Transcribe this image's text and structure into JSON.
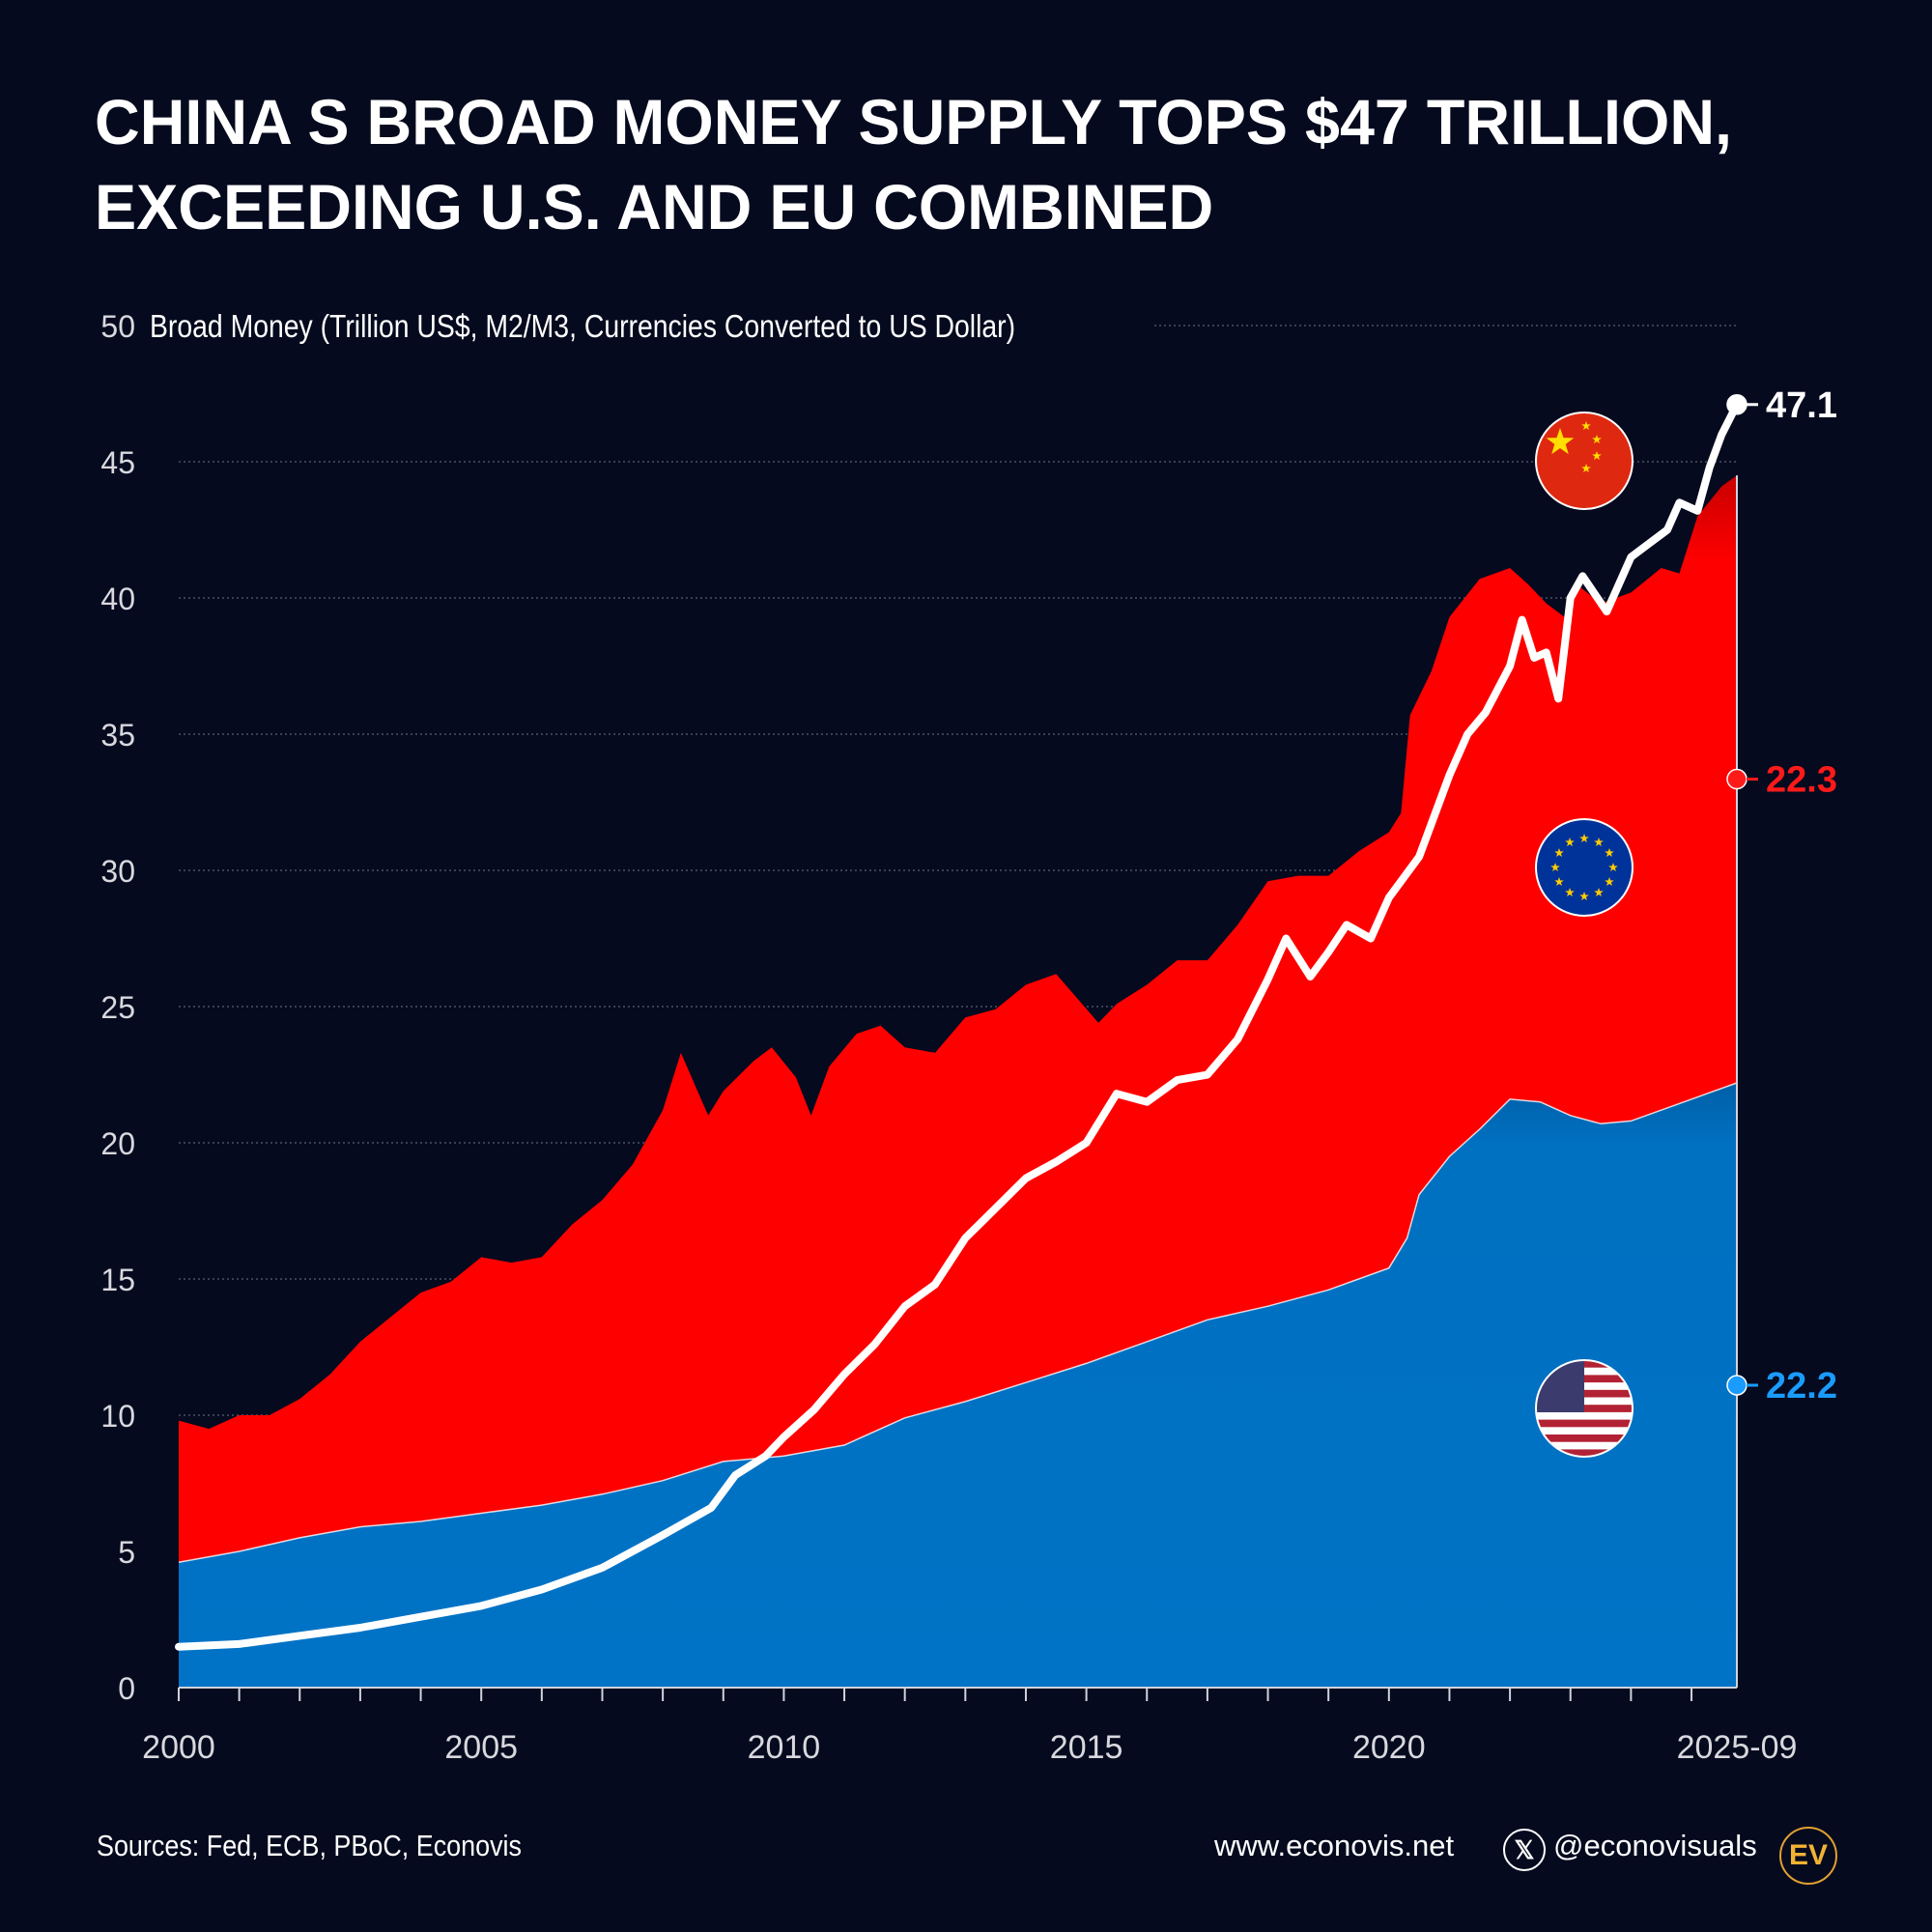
{
  "title_lines": [
    "CHINA S BROAD MONEY SUPPLY TOPS $47 TRILLION,",
    "EXCEEDING U.S. AND EU COMBINED"
  ],
  "footer": {
    "sources": "Sources: Fed, ECB, PBoC, Econovis",
    "website": "www.econovis.net",
    "social_handle": "@econovisuals",
    "social_icon": "x-icon",
    "logo_text": "EV"
  },
  "chart_data": {
    "type": "area",
    "stacked": true,
    "title": "",
    "ylabel": "Broad Money (Trillion US$, M2/M3, Currencies Converted to US Dollar)",
    "xlabel": "",
    "ylim": [
      0,
      50
    ],
    "xlim": [
      2000,
      2025.75
    ],
    "y_ticks": [
      0,
      5,
      10,
      15,
      20,
      25,
      30,
      35,
      40,
      45,
      50
    ],
    "x_tick_labels": [
      {
        "x": 2000,
        "label": "2000"
      },
      {
        "x": 2005,
        "label": "2005"
      },
      {
        "x": 2010,
        "label": "2010"
      },
      {
        "x": 2015,
        "label": "2015"
      },
      {
        "x": 2020,
        "label": "2020"
      },
      {
        "x": 2025.75,
        "label": "2025-09"
      }
    ],
    "grid": "horizontal dotted",
    "colors": {
      "us": "#0070c0",
      "eu": "#ff0000",
      "china": "#ffffff",
      "us_label": "#1a9cff",
      "eu_label": "#ff1a1a",
      "background": "#050a1e"
    },
    "end_labels": {
      "china": "47.1",
      "eu": "22.3",
      "us": "22.2"
    },
    "flags": {
      "china": "china-flag-icon",
      "eu": "eu-flag-icon",
      "us": "us-flag-icon"
    },
    "us": {
      "x": [
        2000,
        2001,
        2002,
        2003,
        2004,
        2005,
        2006,
        2007,
        2008,
        2009,
        2010,
        2011,
        2012,
        2013,
        2014,
        2015,
        2016,
        2017,
        2018,
        2019,
        2020,
        2020.3,
        2020.5,
        2021,
        2021.5,
        2022,
        2022.5,
        2023,
        2023.5,
        2024,
        2024.5,
        2025,
        2025.75
      ],
      "y": [
        4.6,
        5.0,
        5.5,
        5.9,
        6.1,
        6.4,
        6.7,
        7.1,
        7.6,
        8.3,
        8.5,
        8.9,
        9.9,
        10.5,
        11.2,
        11.9,
        12.7,
        13.5,
        14.0,
        14.6,
        15.4,
        16.5,
        18.1,
        19.5,
        20.5,
        21.6,
        21.5,
        21.0,
        20.7,
        20.8,
        21.2,
        21.6,
        22.2
      ]
    },
    "us_plus_eu_total": {
      "x": [
        2000,
        2000.5,
        2001,
        2001.5,
        2002,
        2002.5,
        2003,
        2003.5,
        2004,
        2004.5,
        2005,
        2005.5,
        2006,
        2006.5,
        2007,
        2007.5,
        2008,
        2008.3,
        2008.75,
        2009,
        2009.5,
        2009.8,
        2010.2,
        2010.45,
        2010.75,
        2011.2,
        2011.6,
        2012,
        2012.5,
        2013,
        2013.5,
        2014,
        2014.5,
        2015.2,
        2015.5,
        2016,
        2016.5,
        2017,
        2017.5,
        2018,
        2018.5,
        2019,
        2019.5,
        2020,
        2020.2,
        2020.35,
        2020.7,
        2021,
        2021.5,
        2022,
        2022.3,
        2022.6,
        2022.9,
        2023.1,
        2023.5,
        2024,
        2024.5,
        2024.8,
        2025.1,
        2025.5,
        2025.75
      ],
      "y": [
        9.8,
        9.5,
        10.0,
        10.0,
        10.6,
        11.5,
        12.7,
        13.6,
        14.5,
        14.9,
        15.8,
        15.6,
        15.8,
        17.0,
        17.9,
        19.2,
        21.2,
        23.3,
        21.0,
        21.9,
        23.0,
        23.5,
        22.4,
        21.0,
        22.8,
        24.0,
        24.3,
        23.5,
        23.3,
        24.6,
        24.9,
        25.8,
        26.2,
        24.4,
        25.1,
        25.8,
        26.7,
        26.7,
        28.0,
        29.6,
        29.8,
        29.8,
        30.7,
        31.4,
        32.1,
        35.7,
        37.3,
        39.3,
        40.7,
        41.1,
        40.5,
        39.8,
        39.3,
        40.5,
        39.8,
        40.2,
        41.1,
        40.9,
        43.0,
        44.1,
        44.5
      ]
    },
    "china": {
      "x": [
        2000,
        2001,
        2002,
        2003,
        2004,
        2005,
        2006,
        2007,
        2008,
        2008.8,
        2009.2,
        2009.7,
        2010,
        2010.5,
        2011,
        2011.5,
        2012,
        2012.5,
        2013,
        2013.5,
        2014,
        2014.5,
        2015,
        2015.5,
        2016,
        2016.5,
        2017,
        2017.5,
        2018,
        2018.3,
        2018.7,
        2019,
        2019.3,
        2019.7,
        2020,
        2020.5,
        2021,
        2021.3,
        2021.6,
        2022,
        2022.2,
        2022.4,
        2022.6,
        2022.8,
        2023,
        2023.2,
        2023.6,
        2024,
        2024.3,
        2024.6,
        2024.8,
        2025.1,
        2025.3,
        2025.5,
        2025.75
      ],
      "y": [
        1.5,
        1.6,
        1.9,
        2.2,
        2.6,
        3.0,
        3.6,
        4.4,
        5.6,
        6.6,
        7.8,
        8.5,
        9.2,
        10.2,
        11.5,
        12.6,
        14.0,
        14.8,
        16.5,
        17.6,
        18.7,
        19.3,
        20.0,
        21.8,
        21.5,
        22.3,
        22.5,
        23.8,
        26.0,
        27.5,
        26.1,
        27.0,
        28.0,
        27.5,
        29.0,
        30.5,
        33.5,
        35.0,
        35.8,
        37.5,
        39.2,
        37.8,
        38.0,
        36.3,
        40.0,
        40.8,
        39.5,
        41.5,
        42.0,
        42.5,
        43.5,
        43.2,
        44.8,
        46.0,
        47.1
      ]
    }
  }
}
